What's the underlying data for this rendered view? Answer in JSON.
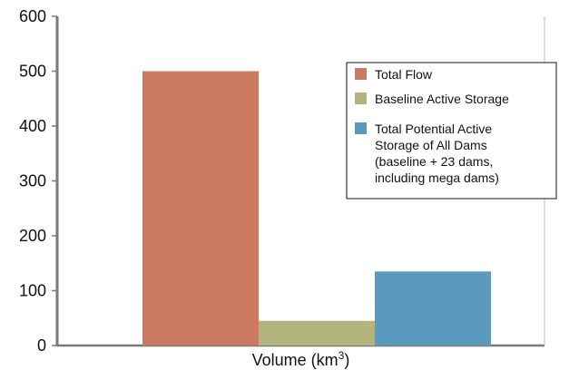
{
  "chart_data": {
    "type": "bar",
    "title": "",
    "xlabel": "Volume (km3)",
    "xlabel_main": "Volume (km",
    "xlabel_sup": "3",
    "xlabel_close": ")",
    "ylabel": "",
    "ylim": [
      0,
      600
    ],
    "yticks": [
      0,
      100,
      200,
      300,
      400,
      500,
      600
    ],
    "ytick_labels": [
      "0",
      "100",
      "200",
      "300",
      "400",
      "500",
      "600"
    ],
    "grid": false,
    "legend_position": "top-right",
    "series": [
      {
        "name": "Total Flow",
        "value": 500,
        "color": "#cc7a5f"
      },
      {
        "name": "Baseline Active Storage",
        "value": 45,
        "color": "#b3b57c"
      },
      {
        "name": "Total Potential Active Storage of All Dams (baseline + 23 dams, including mega dams)",
        "value": 135,
        "color": "#5a9bbd"
      }
    ],
    "legend_lines": [
      [
        "Total Flow"
      ],
      [
        "Baseline Active Storage"
      ],
      [
        "Total Potential Active",
        "Storage of All Dams",
        "(baseline + 23 dams,",
        "including mega dams)"
      ]
    ]
  }
}
